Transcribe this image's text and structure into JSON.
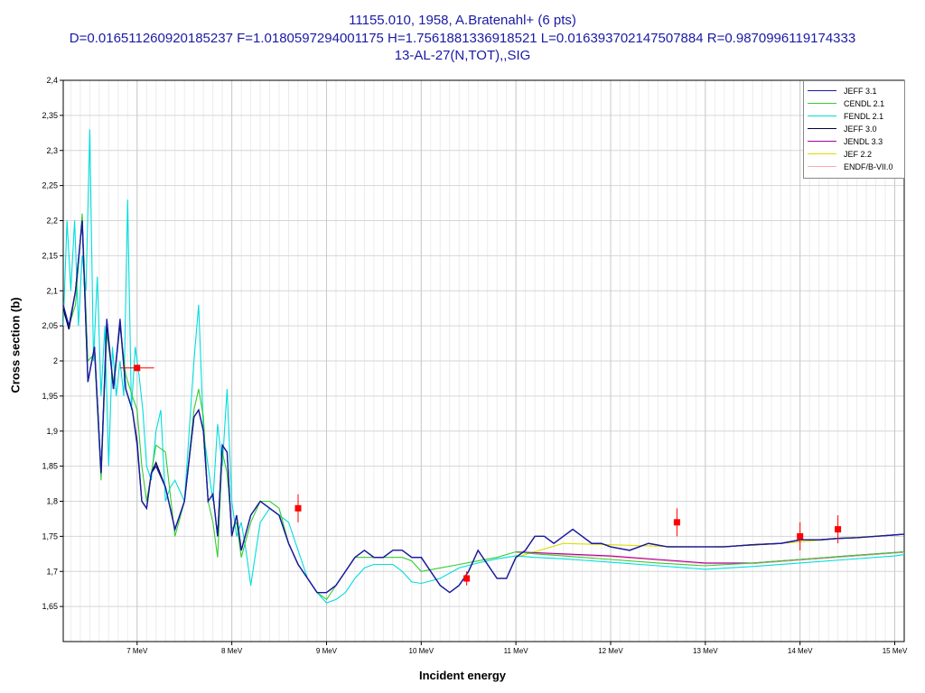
{
  "header": {
    "line1": "11155.010, 1958, A.Bratenahl+ (6 pts)",
    "line2": "D=0.016511260920185237 F=1.0180597294001175 H=1.7561881336918521 L=0.016393702147507884 R=0.9870996119174333",
    "line3": "13-AL-27(N,TOT),,SIG"
  },
  "chart_data": {
    "type": "line",
    "title": "11155.010, 1958, A.Bratenahl+ (6 pts)",
    "xlabel": "Incident energy",
    "ylabel": "Cross section (b)",
    "xlim": [
      6.22,
      15.1
    ],
    "ylim": [
      1.6,
      2.4
    ],
    "grid": true,
    "legend_position": "top-right",
    "x_ticks": [
      {
        "v": 7,
        "label": "7 MeV"
      },
      {
        "v": 8,
        "label": "8 MeV"
      },
      {
        "v": 9,
        "label": "9 MeV"
      },
      {
        "v": 10,
        "label": "10 MeV"
      },
      {
        "v": 11,
        "label": "11 MeV"
      },
      {
        "v": 12,
        "label": "12 MeV"
      },
      {
        "v": 13,
        "label": "13 MeV"
      },
      {
        "v": 14,
        "label": "14 MeV"
      },
      {
        "v": 15,
        "label": "15 MeV"
      }
    ],
    "y_ticks": [
      {
        "v": 1.65,
        "label": "1,65"
      },
      {
        "v": 1.7,
        "label": "1,7"
      },
      {
        "v": 1.75,
        "label": "1,75"
      },
      {
        "v": 1.8,
        "label": "1,8"
      },
      {
        "v": 1.85,
        "label": "1,85"
      },
      {
        "v": 1.9,
        "label": "1,9"
      },
      {
        "v": 1.95,
        "label": "1,95"
      },
      {
        "v": 2.0,
        "label": "2"
      },
      {
        "v": 2.05,
        "label": "2,05"
      },
      {
        "v": 2.1,
        "label": "2,1"
      },
      {
        "v": 2.15,
        "label": "2,15"
      },
      {
        "v": 2.2,
        "label": "2,2"
      },
      {
        "v": 2.25,
        "label": "2,25"
      },
      {
        "v": 2.3,
        "label": "2,3"
      },
      {
        "v": 2.35,
        "label": "2,35"
      },
      {
        "v": 2.4,
        "label": "2,4"
      }
    ],
    "series": [
      {
        "name": "JEFF 3.1",
        "color": "#1a1aa6",
        "x": [
          6.22,
          6.28,
          6.35,
          6.42,
          6.48,
          6.55,
          6.62,
          6.68,
          6.75,
          6.82,
          6.88,
          6.95,
          7.0,
          7.05,
          7.1,
          7.15,
          7.2,
          7.3,
          7.4,
          7.5,
          7.6,
          7.65,
          7.7,
          7.75,
          7.8,
          7.85,
          7.9,
          7.95,
          8.0,
          8.05,
          8.1,
          8.2,
          8.3,
          8.4,
          8.5,
          8.6,
          8.7,
          8.8,
          8.9,
          9.0,
          9.1,
          9.2,
          9.3,
          9.4,
          9.5,
          9.6,
          9.7,
          9.8,
          9.9,
          10.0,
          10.1,
          10.2,
          10.3,
          10.4,
          10.5,
          10.6,
          10.7,
          10.8,
          10.9,
          11.0,
          11.1,
          11.2,
          11.3,
          11.4,
          11.5,
          11.6,
          11.7,
          11.8,
          11.9,
          12.0,
          12.2,
          12.4,
          12.6,
          12.8,
          13.0,
          13.2,
          13.5,
          13.8,
          14.0,
          14.2,
          14.4,
          14.6,
          14.8,
          15.0,
          15.1
        ],
        "y": [
          2.08,
          2.05,
          2.1,
          2.2,
          1.97,
          2.02,
          1.84,
          2.06,
          1.96,
          2.06,
          1.96,
          1.93,
          1.88,
          1.8,
          1.79,
          1.84,
          1.85,
          1.82,
          1.76,
          1.8,
          1.92,
          1.93,
          1.9,
          1.8,
          1.81,
          1.75,
          1.88,
          1.87,
          1.75,
          1.78,
          1.73,
          1.78,
          1.8,
          1.79,
          1.78,
          1.74,
          1.71,
          1.69,
          1.67,
          1.67,
          1.68,
          1.7,
          1.72,
          1.73,
          1.72,
          1.72,
          1.73,
          1.73,
          1.72,
          1.72,
          1.7,
          1.68,
          1.67,
          1.68,
          1.7,
          1.73,
          1.71,
          1.69,
          1.69,
          1.72,
          1.73,
          1.75,
          1.75,
          1.74,
          1.75,
          1.76,
          1.75,
          1.74,
          1.74,
          1.735,
          1.73,
          1.74,
          1.735,
          1.735,
          1.735,
          1.735,
          1.738,
          1.74,
          1.745,
          1.745,
          1.747,
          1.748,
          1.75,
          1.752,
          1.753
        ]
      },
      {
        "name": "CENDL 2.1",
        "color": "#33cc33",
        "x": [
          6.22,
          6.28,
          6.35,
          6.42,
          6.48,
          6.55,
          6.62,
          6.68,
          6.75,
          6.82,
          6.88,
          6.95,
          7.0,
          7.05,
          7.1,
          7.15,
          7.2,
          7.3,
          7.4,
          7.5,
          7.6,
          7.65,
          7.7,
          7.75,
          7.8,
          7.85,
          7.9,
          7.95,
          8.0,
          8.05,
          8.1,
          8.2,
          8.3,
          8.4,
          8.5,
          8.6,
          8.7,
          8.8,
          8.9,
          9.0,
          9.1,
          9.2,
          9.3,
          9.4,
          9.5,
          9.6,
          9.7,
          9.8,
          9.9,
          10.0,
          10.2,
          10.4,
          10.6,
          10.8,
          11.0,
          11.2,
          11.5,
          12.0,
          12.5,
          13.0,
          13.5,
          14.0,
          14.5,
          15.0,
          15.1
        ],
        "y": [
          2.07,
          2.05,
          2.08,
          2.21,
          2.0,
          2.01,
          1.83,
          2.04,
          1.97,
          2.05,
          1.98,
          1.95,
          1.93,
          1.85,
          1.8,
          1.84,
          1.88,
          1.87,
          1.75,
          1.8,
          1.93,
          1.96,
          1.92,
          1.8,
          1.77,
          1.72,
          1.87,
          1.84,
          1.76,
          1.77,
          1.72,
          1.77,
          1.8,
          1.8,
          1.79,
          1.74,
          1.71,
          1.69,
          1.67,
          1.66,
          1.68,
          1.7,
          1.72,
          1.72,
          1.72,
          1.72,
          1.72,
          1.72,
          1.715,
          1.7,
          1.705,
          1.71,
          1.715,
          1.72,
          1.728,
          1.725,
          1.722,
          1.717,
          1.712,
          1.708,
          1.712,
          1.717,
          1.722,
          1.727,
          1.728
        ]
      },
      {
        "name": "FENDL 2.1",
        "color": "#00dddd",
        "x": [
          6.22,
          6.26,
          6.3,
          6.34,
          6.38,
          6.42,
          6.46,
          6.5,
          6.54,
          6.58,
          6.62,
          6.66,
          6.7,
          6.74,
          6.78,
          6.82,
          6.86,
          6.9,
          6.94,
          6.98,
          7.02,
          7.06,
          7.1,
          7.15,
          7.2,
          7.25,
          7.3,
          7.35,
          7.4,
          7.5,
          7.6,
          7.65,
          7.7,
          7.75,
          7.8,
          7.85,
          7.9,
          7.95,
          8.0,
          8.05,
          8.1,
          8.15,
          8.2,
          8.3,
          8.4,
          8.5,
          8.6,
          8.7,
          8.8,
          8.9,
          9.0,
          9.1,
          9.2,
          9.3,
          9.4,
          9.5,
          9.6,
          9.7,
          9.8,
          9.9,
          10.0,
          10.2,
          10.4,
          10.6,
          10.8,
          11.0,
          11.2,
          11.5,
          12.0,
          12.5,
          13.0,
          13.5,
          14.0,
          14.5,
          15.0,
          15.1
        ],
        "y": [
          2.05,
          2.2,
          2.1,
          2.2,
          2.05,
          2.15,
          2.1,
          2.33,
          2.0,
          2.12,
          1.95,
          2.05,
          1.85,
          2.02,
          1.95,
          2.0,
          1.95,
          2.23,
          1.93,
          2.02,
          1.98,
          1.93,
          1.85,
          1.83,
          1.9,
          1.93,
          1.8,
          1.82,
          1.83,
          1.8,
          2.0,
          2.08,
          1.9,
          1.85,
          1.8,
          1.91,
          1.85,
          1.96,
          1.8,
          1.75,
          1.77,
          1.73,
          1.68,
          1.77,
          1.79,
          1.78,
          1.77,
          1.73,
          1.69,
          1.67,
          1.655,
          1.66,
          1.67,
          1.69,
          1.705,
          1.71,
          1.71,
          1.71,
          1.7,
          1.685,
          1.683,
          1.69,
          1.705,
          1.712,
          1.718,
          1.722,
          1.72,
          1.718,
          1.713,
          1.708,
          1.703,
          1.707,
          1.712,
          1.717,
          1.722,
          1.724
        ]
      },
      {
        "name": "JEFF 3.0",
        "color": "#000044",
        "x": [
          6.22,
          6.28,
          6.35,
          6.42,
          6.48,
          6.55,
          6.62,
          6.68,
          6.75,
          6.82,
          6.88,
          6.95,
          7.0,
          7.05,
          7.1,
          7.15,
          7.2,
          7.3,
          7.4,
          7.5,
          7.6,
          7.65,
          7.7,
          7.75,
          7.8,
          7.85,
          7.9,
          7.95,
          8.0,
          8.05,
          8.1,
          8.2,
          8.3,
          8.4,
          8.5,
          8.6,
          8.7,
          8.8,
          8.9,
          9.0,
          9.1,
          9.2,
          9.3,
          9.4,
          9.5,
          9.6,
          9.7,
          9.8,
          9.9,
          10.0,
          10.1,
          10.2,
          10.3,
          10.4,
          10.5,
          10.6,
          10.7,
          10.8,
          10.9,
          11.0,
          11.1,
          11.2,
          11.3,
          11.4,
          11.5,
          11.6,
          11.7,
          11.8,
          11.9,
          12.0,
          12.2,
          12.4,
          12.6,
          12.8,
          13.0,
          13.2,
          13.5,
          13.8,
          14.0,
          14.2,
          14.4,
          14.6,
          14.8,
          15.0,
          15.1
        ],
        "y": [
          2.075,
          2.045,
          2.1,
          2.2,
          1.97,
          2.02,
          1.84,
          2.055,
          1.96,
          2.055,
          1.96,
          1.93,
          1.885,
          1.8,
          1.79,
          1.84,
          1.855,
          1.82,
          1.76,
          1.8,
          1.92,
          1.93,
          1.9,
          1.8,
          1.81,
          1.75,
          1.88,
          1.87,
          1.75,
          1.78,
          1.73,
          1.78,
          1.8,
          1.79,
          1.78,
          1.74,
          1.71,
          1.69,
          1.67,
          1.67,
          1.68,
          1.7,
          1.72,
          1.73,
          1.72,
          1.72,
          1.73,
          1.73,
          1.72,
          1.72,
          1.7,
          1.68,
          1.67,
          1.68,
          1.7,
          1.73,
          1.71,
          1.69,
          1.69,
          1.72,
          1.73,
          1.75,
          1.75,
          1.74,
          1.75,
          1.76,
          1.75,
          1.74,
          1.74,
          1.735,
          1.73,
          1.74,
          1.735,
          1.735,
          1.735,
          1.735,
          1.738,
          1.74,
          1.745,
          1.745,
          1.747,
          1.748,
          1.75,
          1.752,
          1.753
        ]
      },
      {
        "name": "JENDL 3.3",
        "color": "#aa00aa",
        "x": [
          11.0,
          11.5,
          12.0,
          12.5,
          13.0,
          13.5,
          14.0,
          14.5,
          15.0,
          15.1
        ],
        "y": [
          1.728,
          1.725,
          1.722,
          1.717,
          1.712,
          1.712,
          1.717,
          1.722,
          1.727,
          1.728
        ]
      },
      {
        "name": "JEF 2.2",
        "color": "#dddd00",
        "x": [
          11.0,
          11.5,
          12.0,
          12.5,
          13.0,
          13.5,
          14.0,
          14.5,
          15.0,
          15.1
        ],
        "y": [
          1.72,
          1.74,
          1.738,
          1.736,
          1.735,
          1.737,
          1.742,
          1.748,
          1.752,
          1.753
        ]
      },
      {
        "name": "ENDF/B-VII.0",
        "color": "#ffaaaa",
        "x": [
          11.0,
          11.5,
          12.0,
          12.5,
          13.0,
          13.5,
          14.0,
          14.5,
          15.0,
          15.1
        ],
        "y": [
          1.727,
          1.724,
          1.721,
          1.716,
          1.711,
          1.711,
          1.716,
          1.721,
          1.726,
          1.727
        ]
      }
    ],
    "experimental": {
      "name": "11155.010",
      "color": "#ff0000",
      "points": [
        {
          "x": 7.0,
          "y": 1.99,
          "xerr": 0.18,
          "yerr": 0.0
        },
        {
          "x": 8.7,
          "y": 1.79,
          "xerr": 0.0,
          "yerr": 0.02
        },
        {
          "x": 10.48,
          "y": 1.69,
          "xerr": 0.0,
          "yerr": 0.01
        },
        {
          "x": 12.7,
          "y": 1.77,
          "xerr": 0.0,
          "yerr": 0.02
        },
        {
          "x": 14.0,
          "y": 1.75,
          "xerr": 0.0,
          "yerr": 0.02
        },
        {
          "x": 14.4,
          "y": 1.76,
          "xerr": 0.0,
          "yerr": 0.02
        }
      ]
    }
  }
}
